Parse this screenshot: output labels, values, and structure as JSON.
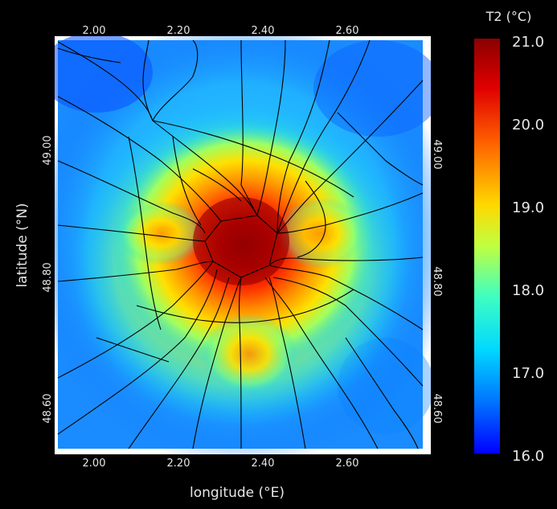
{
  "map": {
    "x_axis": {
      "label": "longitude (°E)",
      "ticks_bottom": [
        "2.00",
        "2.20",
        "2.40",
        "2.60"
      ],
      "ticks_top": [
        "2.00",
        "2.20",
        "2.40",
        "2.60"
      ]
    },
    "y_axis": {
      "label": "latitude (°N)",
      "ticks_left": [
        "49.00",
        "48.80",
        "48.60"
      ],
      "ticks_right": [
        "49.00",
        "48.80",
        "48.60"
      ]
    },
    "variable": "T2",
    "unit": "(°C)",
    "colorbar": {
      "title": "T2  (°C)",
      "min": 16.0,
      "max": 21.0,
      "ticks": [
        "21.0",
        "20.0",
        "19.0",
        "18.0",
        "17.0",
        "16.0"
      ],
      "colors": [
        "#0000ff",
        "#0070ff",
        "#00d8ff",
        "#40ffc0",
        "#c0ff40",
        "#ffd800",
        "#ff6000",
        "#e00000",
        "#8b0000"
      ]
    },
    "warm_center": {
      "lon": 2.35,
      "lat": 48.86
    }
  }
}
